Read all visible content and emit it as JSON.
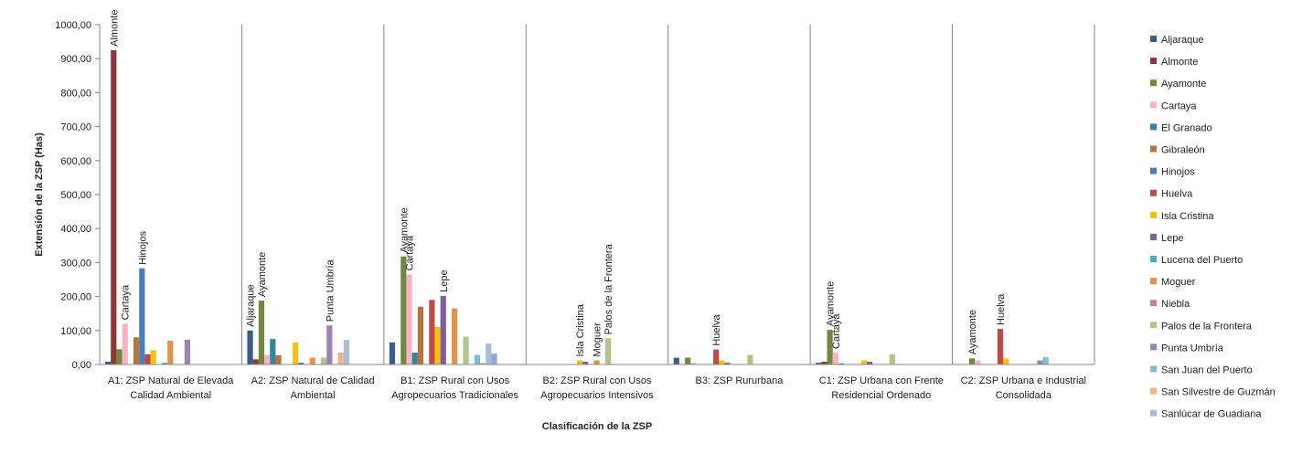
{
  "chart_data": {
    "type": "bar",
    "xlabel": "Clasificación  de la ZSP",
    "ylabel": "Extensión de la ZSP (Has)",
    "ylim": [
      0,
      1000
    ],
    "yticks": [
      "0,00",
      "100,00",
      "200,00",
      "300,00",
      "400,00",
      "500,00",
      "600,00",
      "700,00",
      "800,00",
      "900,00",
      "1000,00"
    ],
    "grid": false,
    "legend_position": "right",
    "categories": [
      [
        "A1: ZSP Natural de Elevada",
        "Calidad Ambiental"
      ],
      [
        "A2: ZSP Natural de Calidad",
        "Ambiental"
      ],
      [
        "B1: ZSP Rural con Usos",
        "Agropecuarios Tradicionales"
      ],
      [
        "B2: ZSP Rural con Usos",
        "Agropecuarios Intensivos"
      ],
      [
        "B3: ZSP Rururbana"
      ],
      [
        "C1: ZSP Urbana con Frente",
        "Residencial Ordenado"
      ],
      [
        "C2: ZSP Urbana e Industrial",
        "Consolidada"
      ]
    ],
    "series": [
      {
        "name": "Aljaraque",
        "color": "#385d8a",
        "values": [
          8,
          100,
          65,
          0,
          20,
          5,
          0
        ]
      },
      {
        "name": "Almonte",
        "color": "#8c3836",
        "values": [
          925,
          15,
          0,
          0,
          0,
          8,
          0
        ]
      },
      {
        "name": "Ayamonte",
        "color": "#71893f",
        "values": [
          45,
          188,
          318,
          0,
          20,
          102,
          18
        ]
      },
      {
        "name": "Cartaya",
        "color": "#f9b3c5",
        "values": [
          120,
          28,
          265,
          0,
          5,
          35,
          12
        ]
      },
      {
        "name": "El Granado",
        "color": "#31859c",
        "values": [
          0,
          75,
          35,
          0,
          0,
          3,
          0
        ]
      },
      {
        "name": "Gibraleón",
        "color": "#b9743e",
        "values": [
          80,
          27,
          170,
          0,
          0,
          0,
          0
        ]
      },
      {
        "name": "Hinojos",
        "color": "#4a7ebb",
        "values": [
          283,
          0,
          0,
          0,
          0,
          0,
          0
        ]
      },
      {
        "name": "Huelva",
        "color": "#be4b48",
        "values": [
          30,
          0,
          190,
          0,
          44,
          0,
          105
        ]
      },
      {
        "name": "Isla Cristina",
        "color": "#f9c011",
        "values": [
          42,
          65,
          110,
          12,
          12,
          12,
          18
        ]
      },
      {
        "name": "Lepe",
        "color": "#7d5fa0",
        "values": [
          0,
          5,
          202,
          8,
          5,
          8,
          0
        ]
      },
      {
        "name": "Lucena del Puerto",
        "color": "#4bacc6",
        "values": [
          5,
          0,
          0,
          0,
          0,
          0,
          0
        ]
      },
      {
        "name": "Moguer",
        "color": "#e6914b",
        "values": [
          70,
          20,
          165,
          12,
          0,
          0,
          0
        ]
      },
      {
        "name": "Niebla",
        "color": "#c8827e",
        "values": [
          0,
          0,
          0,
          0,
          0,
          0,
          0
        ]
      },
      {
        "name": "Palos de la Frontera",
        "color": "#aec687",
        "values": [
          0,
          20,
          82,
          77,
          28,
          30,
          0
        ]
      },
      {
        "name": "Punta Umbría",
        "color": "#9b83b5",
        "values": [
          73,
          115,
          0,
          0,
          0,
          0,
          12
        ]
      },
      {
        "name": "San Juan del Puerto",
        "color": "#7cbfd2",
        "values": [
          0,
          0,
          28,
          0,
          0,
          0,
          22
        ]
      },
      {
        "name": "San Silvestre de Guzmán",
        "color": "#f4b183",
        "values": [
          0,
          35,
          5,
          0,
          0,
          0,
          0
        ]
      },
      {
        "name": "Sanlúcar de Guadiana",
        "color": "#a9bcd8",
        "values": [
          0,
          72,
          62,
          0,
          0,
          0,
          0
        ]
      },
      {
        "name": "",
        "color": "#8eaadb",
        "values": [
          0,
          0,
          32,
          0,
          0,
          0,
          0
        ]
      }
    ],
    "annotations": [
      {
        "text": "Almonte",
        "category": 0,
        "series": 1
      },
      {
        "text": "Cartaya",
        "category": 0,
        "series": 3
      },
      {
        "text": "Hinojos",
        "category": 0,
        "series": 6
      },
      {
        "text": "Aljaraque",
        "category": 1,
        "series": 0
      },
      {
        "text": "Ayamonte",
        "category": 1,
        "series": 2
      },
      {
        "text": "Punta Umbría",
        "category": 1,
        "series": 14
      },
      {
        "text": "Ayamonte",
        "category": 2,
        "series": 2
      },
      {
        "text": "Cartaya",
        "category": 2,
        "series": 3
      },
      {
        "text": "Lepe",
        "category": 2,
        "series": 9
      },
      {
        "text": "Isla Cristina",
        "category": 3,
        "series": 8
      },
      {
        "text": "Moguer",
        "category": 3,
        "series": 11
      },
      {
        "text": "Palos de la Frontera",
        "category": 3,
        "series": 13
      },
      {
        "text": "Huelva",
        "category": 4,
        "series": 7
      },
      {
        "text": "Ayamonte",
        "category": 5,
        "series": 2
      },
      {
        "text": "Cartaya",
        "category": 5,
        "series": 3
      },
      {
        "text": "Ayamonte",
        "category": 6,
        "series": 2
      },
      {
        "text": "Huelva",
        "category": 6,
        "series": 7
      }
    ]
  }
}
